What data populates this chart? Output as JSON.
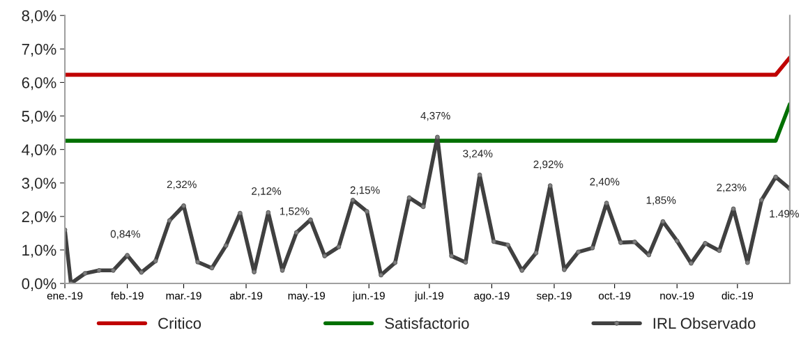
{
  "chart_data": {
    "type": "line",
    "x": [
      "2019-01-01",
      "2019-01-04",
      "2019-01-11",
      "2019-01-18",
      "2019-01-25",
      "2019-02-01",
      "2019-02-08",
      "2019-02-15",
      "2019-02-22",
      "2019-03-01",
      "2019-03-08",
      "2019-03-15",
      "2019-03-22",
      "2019-03-29",
      "2019-04-05",
      "2019-04-12",
      "2019-04-19",
      "2019-04-26",
      "2019-05-03",
      "2019-05-10",
      "2019-05-17",
      "2019-05-24",
      "2019-05-31",
      "2019-06-07",
      "2019-06-14",
      "2019-06-21",
      "2019-06-28",
      "2019-07-05",
      "2019-07-12",
      "2019-07-19",
      "2019-07-26",
      "2019-08-02",
      "2019-08-09",
      "2019-08-16",
      "2019-08-23",
      "2019-08-30",
      "2019-09-06",
      "2019-09-13",
      "2019-09-20",
      "2019-09-27",
      "2019-10-04",
      "2019-10-11",
      "2019-10-18",
      "2019-10-25",
      "2019-11-01",
      "2019-11-08",
      "2019-11-15",
      "2019-11-22",
      "2019-11-29",
      "2019-12-06",
      "2019-12-13",
      "2019-12-20",
      "2019-12-27"
    ],
    "series": [
      {
        "name": "Critico",
        "color": "#c00000",
        "marker": "none",
        "values": [
          6.23,
          6.23,
          6.23,
          6.23,
          6.23,
          6.23,
          6.23,
          6.23,
          6.23,
          6.23,
          6.23,
          6.23,
          6.23,
          6.23,
          6.23,
          6.23,
          6.23,
          6.23,
          6.23,
          6.23,
          6.23,
          6.23,
          6.23,
          6.23,
          6.23,
          6.23,
          6.23,
          6.23,
          6.23,
          6.23,
          6.23,
          6.23,
          6.23,
          6.23,
          6.23,
          6.23,
          6.23,
          6.23,
          6.23,
          6.23,
          6.23,
          6.23,
          6.23,
          6.23,
          6.23,
          6.23,
          6.23,
          6.23,
          6.23,
          6.23,
          6.23,
          6.23,
          6.74
        ]
      },
      {
        "name": "Satisfactorio",
        "color": "#007000",
        "marker": "none",
        "values": [
          4.26,
          4.26,
          4.26,
          4.26,
          4.26,
          4.26,
          4.26,
          4.26,
          4.26,
          4.26,
          4.26,
          4.26,
          4.26,
          4.26,
          4.26,
          4.26,
          4.26,
          4.26,
          4.26,
          4.26,
          4.26,
          4.26,
          4.26,
          4.26,
          4.26,
          4.26,
          4.26,
          4.26,
          4.26,
          4.26,
          4.26,
          4.26,
          4.26,
          4.26,
          4.26,
          4.26,
          4.26,
          4.26,
          4.26,
          4.26,
          4.26,
          4.26,
          4.26,
          4.26,
          4.26,
          4.26,
          4.26,
          4.26,
          4.26,
          4.26,
          4.26,
          4.26,
          5.35
        ]
      },
      {
        "name": "IRL Observado",
        "color": "#404040",
        "marker": "circle",
        "values": [
          1.6,
          0.0,
          0.3,
          0.39,
          0.39,
          0.84,
          0.33,
          0.67,
          1.88,
          2.32,
          0.64,
          0.46,
          1.13,
          2.1,
          0.34,
          2.12,
          0.39,
          1.52,
          1.9,
          0.82,
          1.09,
          2.49,
          2.15,
          0.25,
          0.62,
          2.56,
          2.29,
          4.37,
          0.82,
          0.63,
          3.24,
          1.25,
          1.15,
          0.39,
          0.91,
          2.92,
          0.41,
          0.94,
          1.06,
          2.4,
          1.22,
          1.24,
          0.85,
          1.85,
          1.27,
          0.6,
          1.2,
          0.98,
          2.23,
          0.62,
          2.49,
          3.18,
          2.83
        ],
        "value_labels": [
          null,
          null,
          null,
          null,
          null,
          "0,84%",
          null,
          null,
          null,
          "2,32%",
          null,
          null,
          null,
          null,
          null,
          "2,12%",
          null,
          "1,52%",
          null,
          null,
          null,
          null,
          "2,15%",
          null,
          null,
          null,
          null,
          "4,37%",
          null,
          null,
          "3,24%",
          null,
          null,
          null,
          null,
          "2,92%",
          null,
          null,
          null,
          "2,40%",
          null,
          null,
          null,
          "1,85%",
          null,
          null,
          null,
          null,
          "2,23%",
          null,
          null,
          null,
          null
        ]
      }
    ],
    "annotations": [
      "1.49%"
    ],
    "xlim": [
      "2019-01-01",
      "2019-12-27"
    ],
    "xticks": [
      {
        "value": "2019-01-01",
        "label": "ene.-19"
      },
      {
        "value": "2019-02-01",
        "label": "feb.-19"
      },
      {
        "value": "2019-03-01",
        "label": "mar.-19"
      },
      {
        "value": "2019-04-01",
        "label": "abr.-19"
      },
      {
        "value": "2019-05-01",
        "label": "may.-19"
      },
      {
        "value": "2019-06-01",
        "label": "jun.-19"
      },
      {
        "value": "2019-07-01",
        "label": "jul.-19"
      },
      {
        "value": "2019-08-01",
        "label": "ago.-19"
      },
      {
        "value": "2019-09-01",
        "label": "sep.-19"
      },
      {
        "value": "2019-10-01",
        "label": "oct.-19"
      },
      {
        "value": "2019-11-01",
        "label": "nov.-19"
      },
      {
        "value": "2019-12-01",
        "label": "dic.-19"
      }
    ],
    "ylim": [
      0,
      8
    ],
    "yticks": [
      {
        "value": 0,
        "label": "0,0%"
      },
      {
        "value": 1,
        "label": "1,0%"
      },
      {
        "value": 2,
        "label": "2,0%"
      },
      {
        "value": 3,
        "label": "3,0%"
      },
      {
        "value": 4,
        "label": "4,0%"
      },
      {
        "value": 5,
        "label": "5,0%"
      },
      {
        "value": 6,
        "label": "6,0%"
      },
      {
        "value": 7,
        "label": "7,0%"
      },
      {
        "value": 8,
        "label": "8,0%"
      }
    ],
    "grid": false,
    "legend": "bottom"
  }
}
